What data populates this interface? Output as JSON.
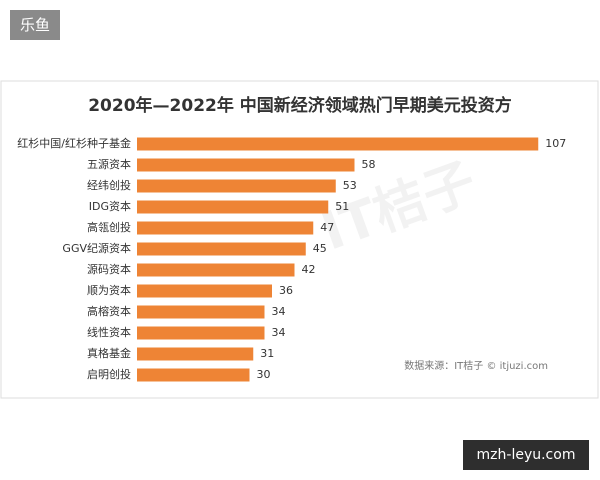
{
  "badge": "乐鱼",
  "site_label": "mzh-leyu.com",
  "chart_data": {
    "type": "bar",
    "title": "2020年—2022年 中国新经济领域热门早期美元投资方",
    "categories": [
      "红杉中国/红杉种子基金",
      "五源资本",
      "经纬创投",
      "IDG资本",
      "高瓴创投",
      "GGV纪源资本",
      "源码资本",
      "顺为资本",
      "高榕资本",
      "线性资本",
      "真格基金",
      "启明创投"
    ],
    "values": [
      107,
      58,
      53,
      51,
      47,
      45,
      42,
      36,
      34,
      34,
      31,
      30
    ],
    "color": "#ee8435",
    "watermark": "IT桔子",
    "source": "数据来源：IT桔子 © itjuzi.com"
  }
}
